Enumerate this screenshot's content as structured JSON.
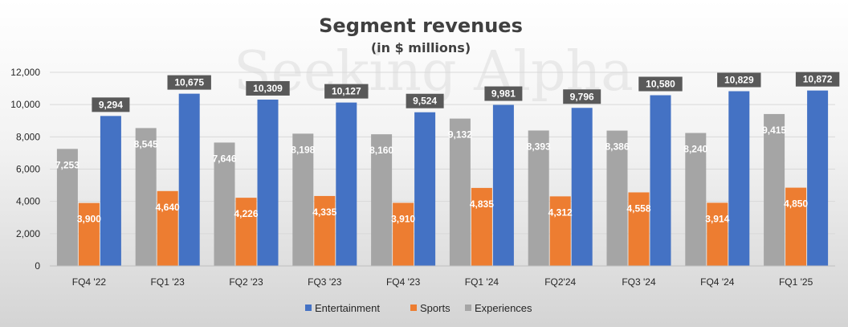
{
  "watermark": "Seeking Alpha",
  "chart_data": {
    "type": "bar",
    "title": "Segment revenues",
    "subtitle": "(in $ millions)",
    "xlabel": "",
    "ylabel": "",
    "ylim": [
      0,
      12000
    ],
    "yticks": [
      0,
      2000,
      4000,
      6000,
      8000,
      10000,
      12000
    ],
    "ytick_labels": [
      "0",
      "2,000",
      "4,000",
      "6,000",
      "8,000",
      "10,000",
      "12,000"
    ],
    "grid": true,
    "legend_position": "bottom",
    "categories": [
      "FQ4 '22",
      "FQ1 '23",
      "FQ2 '23",
      "FQ3 '23",
      "FQ4 '23",
      "FQ1 '24",
      "FQ2'24",
      "FQ3 '24",
      "FQ4 '24",
      "FQ1 '25"
    ],
    "draw_order": [
      "Experiences",
      "Sports",
      "Entertainment"
    ],
    "series": [
      {
        "name": "Entertainment",
        "color": "#4472C4",
        "values": [
          9294,
          10675,
          10309,
          10127,
          9524,
          9981,
          9796,
          10580,
          10829,
          10872
        ],
        "labels": [
          "9,294",
          "10,675",
          "10,309",
          "10,127",
          "9,524",
          "9,981",
          "9,796",
          "10,580",
          "10,829",
          "10,872"
        ]
      },
      {
        "name": "Sports",
        "color": "#ED7D31",
        "values": [
          3900,
          4640,
          4226,
          4335,
          3910,
          4835,
          4312,
          4558,
          3914,
          4850
        ],
        "labels": [
          "3,900",
          "4,640",
          "4,226",
          "4,335",
          "3,910",
          "4,835",
          "4,312",
          "4,558",
          "3,914",
          "4,850"
        ]
      },
      {
        "name": "Experiences",
        "color": "#A5A5A5",
        "values": [
          7253,
          8545,
          7646,
          8198,
          8160,
          9132,
          8393,
          8386,
          8240,
          9415
        ],
        "labels": [
          "7,253",
          "8,545",
          "7,646",
          "8,198",
          "8,160",
          "9,132",
          "8,393",
          "8,386",
          "8,240",
          "9,415"
        ]
      }
    ],
    "label_box_color": "#595959"
  }
}
